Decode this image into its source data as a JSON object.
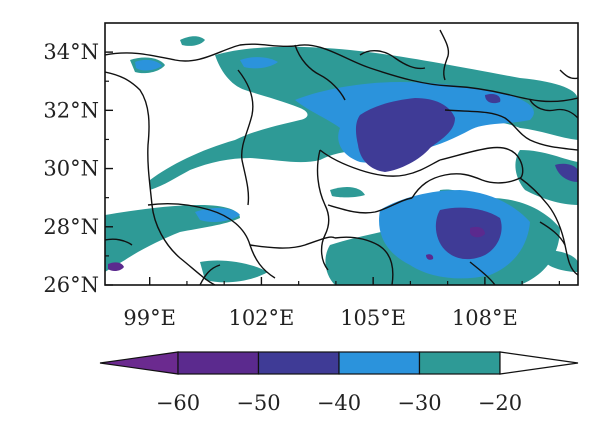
{
  "map": {
    "lat_ticks": [
      "34°N",
      "32°N",
      "30°N",
      "28°N",
      "26°N"
    ],
    "lon_ticks": [
      "99°E",
      "102°E",
      "105°E",
      "108°E"
    ],
    "extent": {
      "lon_min": 97.8,
      "lon_max": 110.5,
      "lat_min": 26.0,
      "lat_max": 35.0
    },
    "lat_values": [
      34,
      32,
      30,
      28,
      26
    ],
    "lon_values": [
      99,
      102,
      105,
      108
    ],
    "land_color": "#ffffff",
    "boundary_color": "#111111"
  },
  "colorbar": {
    "levels": [
      "−60",
      "−50",
      "−40",
      "−30",
      "−20"
    ],
    "level_values": [
      -60,
      -50,
      -40,
      -30,
      -20
    ],
    "colors": {
      "below_min": "#6b2a8f",
      "b1": "#5b2a8e",
      "b2": "#3f3b96",
      "b3": "#2b93dc",
      "b4": "#2e9a96",
      "above_max": "#ffffff"
    },
    "extend": "both"
  }
}
